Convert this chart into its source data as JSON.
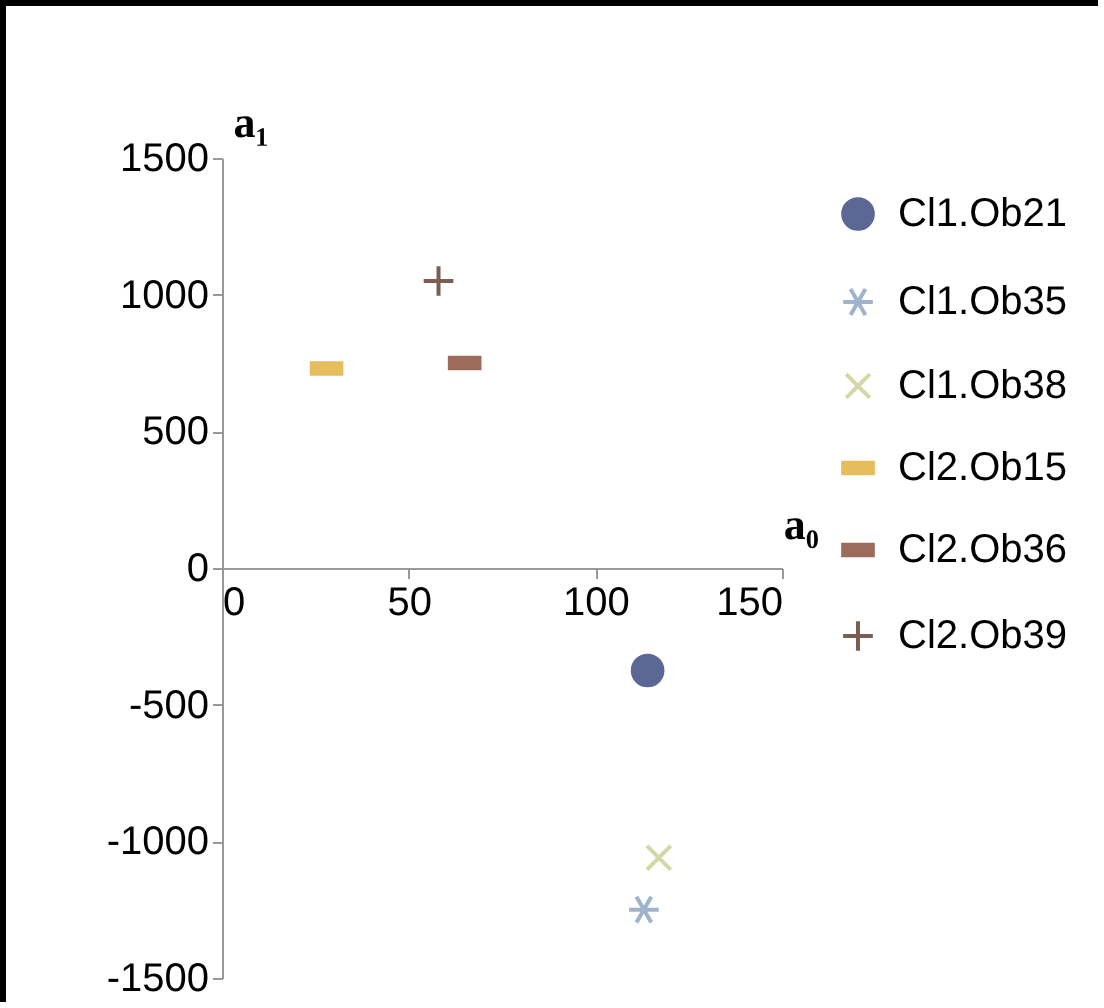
{
  "chart_data": {
    "type": "scatter",
    "xlabel": "a₀",
    "ylabel": "a₁",
    "xlim": [
      0,
      150
    ],
    "xticks": [
      0,
      50,
      100,
      150
    ],
    "ylim": [
      -1500,
      1500
    ],
    "yticks": [
      -1500,
      -1000,
      -500,
      0,
      500,
      1000,
      1500
    ],
    "grid": false,
    "legend": "right",
    "series": [
      {
        "name": "Cl1.Ob21",
        "color": "#5b6895",
        "marker": "circle",
        "x": [
          114
        ],
        "values": [
          -375
        ]
      },
      {
        "name": "Cl1.Ob35",
        "color": "#9fb4cc",
        "x": [
          113
        ],
        "values": [
          -1250
        ]
      },
      {
        "name": "Cl1.Ob38",
        "color": "#d3d8a6",
        "x": [
          117
        ],
        "values": [
          -1060
        ]
      },
      {
        "name": "Cl2.Ob15",
        "color": "#e6bd5c",
        "x": [
          28
        ],
        "values": [
          730
        ]
      },
      {
        "name": "Cl2.Ob36",
        "color": "#9c6b5c",
        "x": [
          65
        ],
        "values": [
          750
        ]
      },
      {
        "name": "Cl2.Ob39",
        "color": "#7b5d52",
        "x": [
          58
        ],
        "values": [
          1050
        ]
      }
    ]
  }
}
